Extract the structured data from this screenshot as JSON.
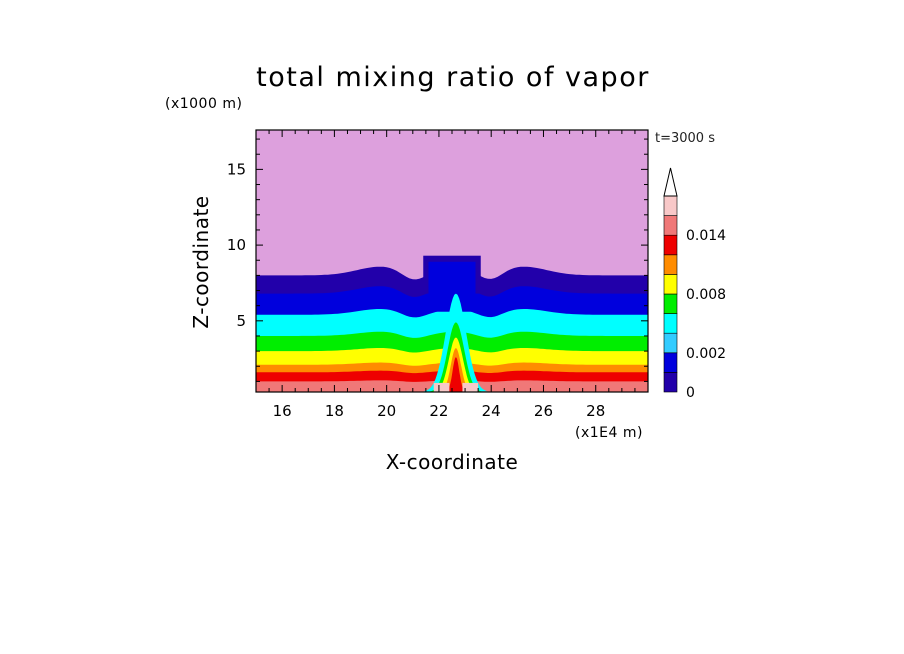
{
  "chart_data": {
    "type": "contour",
    "title": "total mixing ratio of vapor",
    "time_label": "t=3000 s",
    "xlabel": "X-coordinate",
    "ylabel": "Z-coordinate",
    "x_unit": "(x1E4 m)",
    "y_unit": "(x1000 m)",
    "xlim": [
      15,
      30
    ],
    "ylim": [
      0.3,
      17.6
    ],
    "x_ticks": [
      16,
      18,
      20,
      22,
      24,
      26,
      28
    ],
    "y_ticks": [
      5,
      10,
      15
    ],
    "colorbar": {
      "levels": [
        0,
        0.002,
        0.004,
        0.006,
        0.008,
        0.01,
        0.012,
        0.014,
        0.016
      ],
      "tick_labels": [
        "0.014",
        "0.008",
        "0.002",
        "0"
      ],
      "tick_values": [
        0.014,
        0.008,
        0.002,
        0
      ],
      "colors": [
        "#2200AA",
        "#0000DD",
        "#33CCFF",
        "#00FFFF",
        "#00EE00",
        "#FFFF00",
        "#FF8C00",
        "#EE0000",
        "#F07878",
        "#F8C8C8"
      ],
      "extend": "max"
    },
    "background_color": "#DDA0DD",
    "bands_in_clear_air_km": [
      {
        "color": "#2200AA",
        "from_z": 6.8,
        "to_z": 8.0
      },
      {
        "color": "#0000DD",
        "from_z": 5.4,
        "to_z": 6.8
      },
      {
        "color": "#00FFFF",
        "from_z": 4.0,
        "to_z": 5.4
      },
      {
        "color": "#00EE00",
        "from_z": 3.0,
        "to_z": 4.0
      },
      {
        "color": "#FFFF00",
        "from_z": 2.1,
        "to_z": 3.0
      },
      {
        "color": "#FF8C00",
        "from_z": 1.6,
        "to_z": 2.1
      },
      {
        "color": "#EE0000",
        "from_z": 1.0,
        "to_z": 1.6
      },
      {
        "color": "#F07878",
        "from_z": 0.3,
        "to_z": 1.0
      }
    ],
    "plume": {
      "x_range": [
        21.3,
        23.7
      ],
      "top_z": 9.3
    }
  }
}
